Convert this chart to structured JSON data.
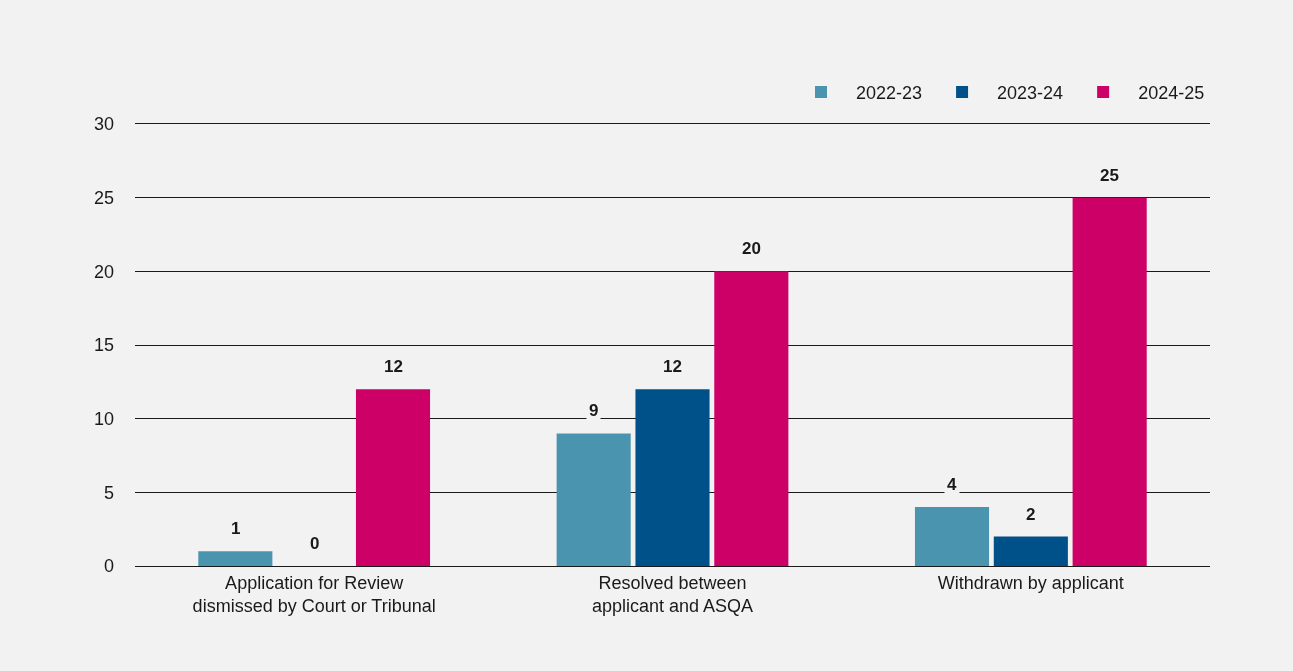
{
  "chart_data": {
    "type": "bar",
    "categories": [
      "Application for Review\ndismissed by Court or Tribunal",
      "Resolved between\napplicant and ASQA",
      "Withdrawn by applicant"
    ],
    "series": [
      {
        "name": "2022-23",
        "color": "#4a94b0",
        "values": [
          1,
          9,
          4
        ]
      },
      {
        "name": "2023-24",
        "color": "#00508a",
        "values": [
          0,
          12,
          2
        ]
      },
      {
        "name": "2024-25",
        "color": "#cc0066",
        "values": [
          12,
          20,
          25
        ]
      }
    ],
    "ylim": [
      0,
      30
    ],
    "yticks": [
      0,
      5,
      10,
      15,
      20,
      25,
      30
    ],
    "grid": "y",
    "legend": "top right",
    "data_labels": true
  }
}
